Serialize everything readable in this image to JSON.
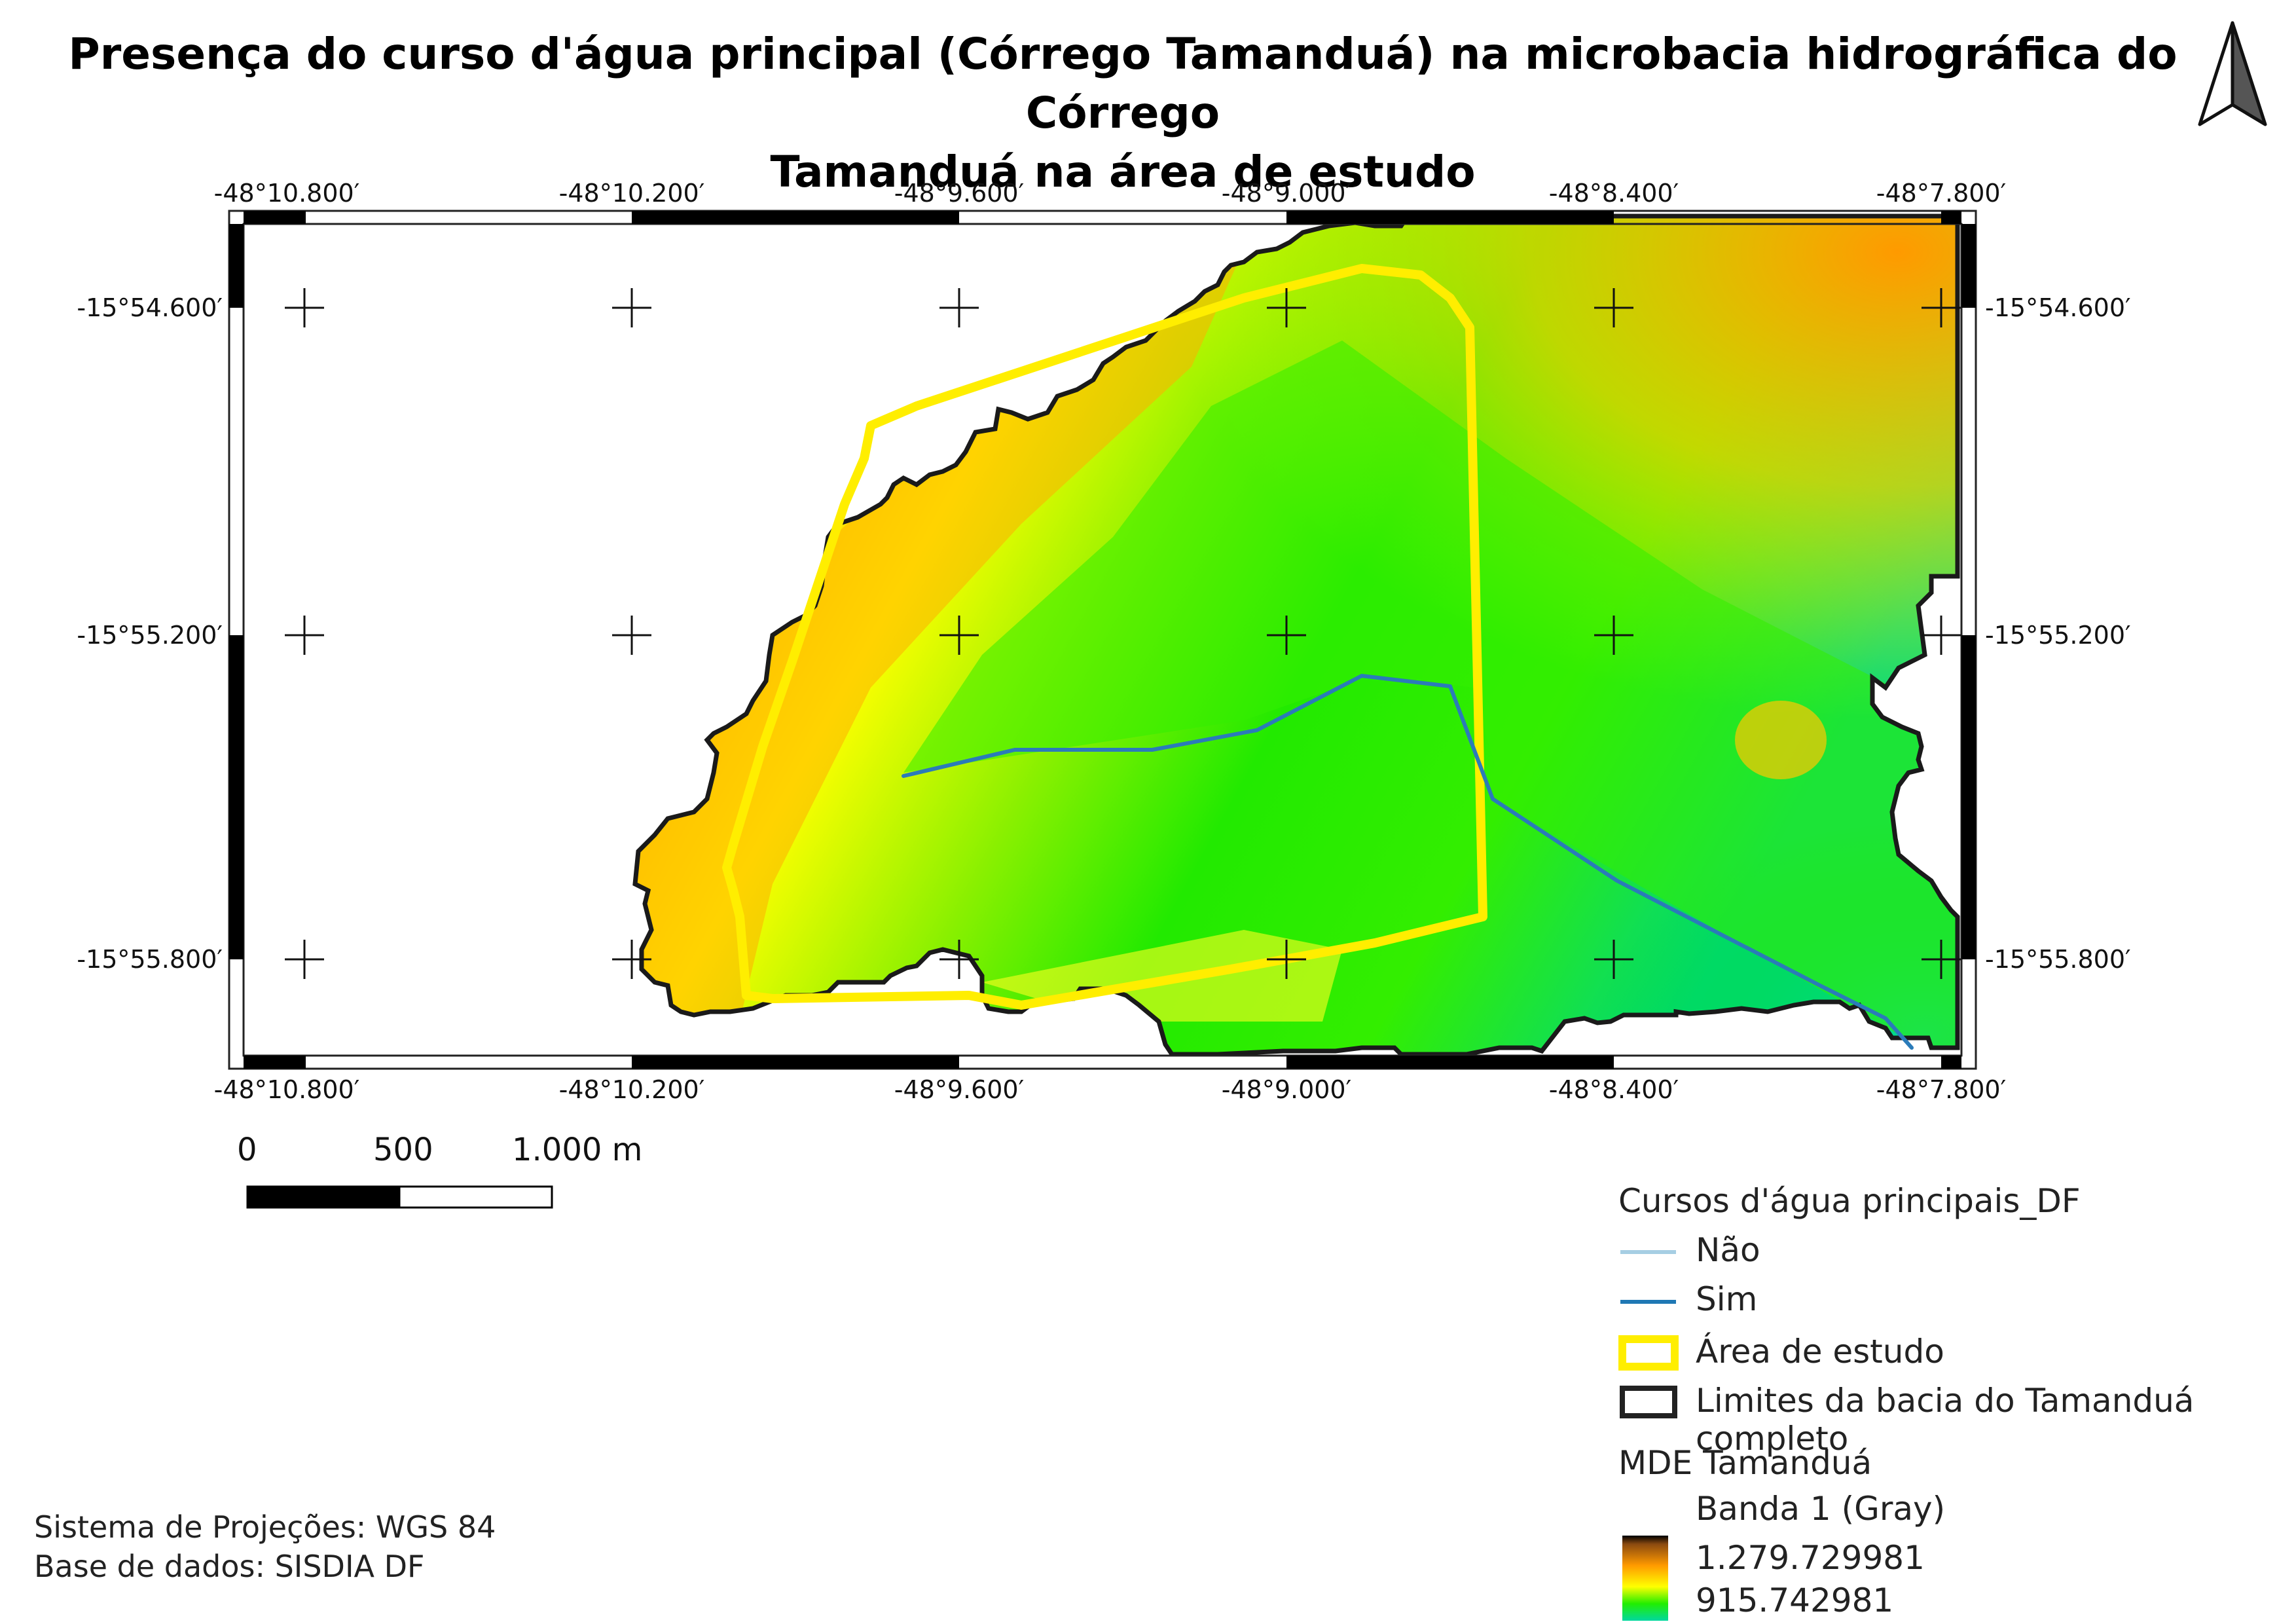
{
  "title": {
    "line1": "Presença do curso d'água principal (Córrego Tamanduá) na microbacia hidrográfica do Córrego",
    "line2": "Tamanduá na área de estudo"
  },
  "north_arrow": {
    "icon": "north-arrow-icon"
  },
  "map": {
    "top_lon_labels": [
      "-48°10.800′",
      "-48°10.200′",
      "-48°9.600′",
      "-48°9.000′",
      "-48°8.400′",
      "-48°7.800′"
    ],
    "bottom_lon_labels": [
      "-48°10.800′",
      "-48°10.200′",
      "-48°9.600′",
      "-48°9.000′",
      "-48°8.400′",
      "-48°7.800′"
    ],
    "left_lat_labels": [
      "-15°54.600′",
      "-15°55.200′",
      "-15°55.800′"
    ],
    "right_lat_labels": [
      "-15°54.600′",
      "-15°55.200′",
      "-15°55.800′"
    ],
    "colors": {
      "dem_high": "#ff9a00",
      "dem_mid": "#ffff00",
      "dem_low": "#00ee00",
      "dem_lowest": "#00d87a",
      "study_area": "#ffee00",
      "stream": "#2b7bb9",
      "basin_outline": "#1a1a1a"
    }
  },
  "scalebar": {
    "labels": [
      "0",
      "500",
      "1.000 m"
    ]
  },
  "legend": {
    "title": "Cursos d'água principais_DF",
    "items": [
      {
        "label": "Não",
        "color": "#a6cee3"
      },
      {
        "label": "Sim",
        "color": "#1f78b4"
      },
      {
        "label": "Área de estudo",
        "color": "#ffee00"
      },
      {
        "label": "Limites da bacia do Tamanduá completo",
        "color": "#222222"
      }
    ],
    "dem_title": "MDE Tamanduá",
    "dem_band": "Banda 1 (Gray)",
    "dem_max": "1.279.729981",
    "dem_min": "915.742981"
  },
  "footer": {
    "projection": "Sistema de Projeções: WGS 84",
    "database": "Base de dados: SISDIA DF"
  }
}
